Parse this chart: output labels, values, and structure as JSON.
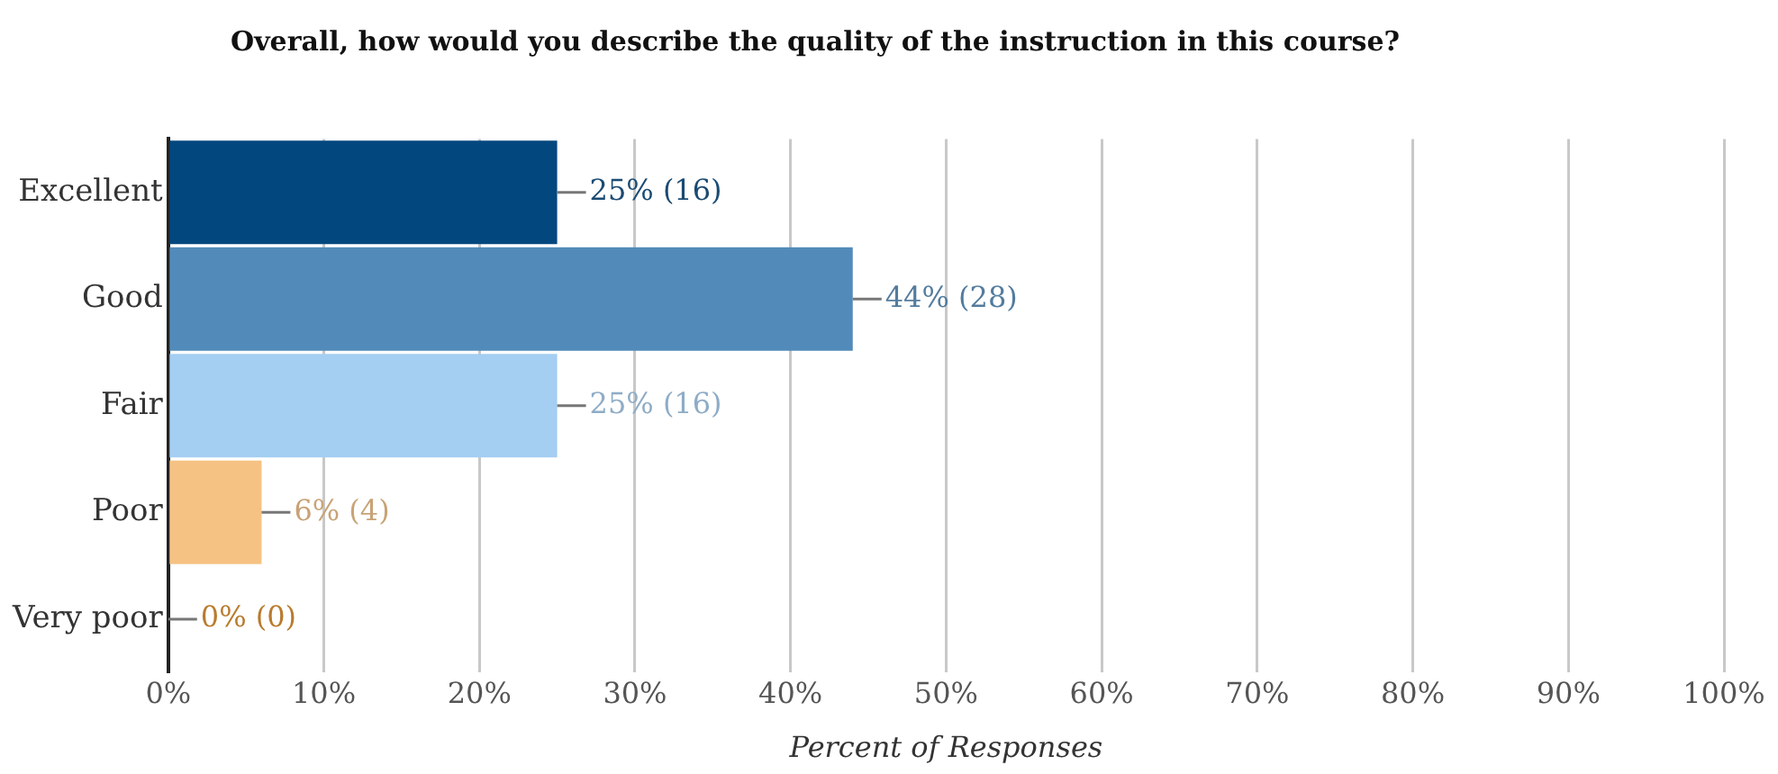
{
  "chart_data": {
    "type": "bar",
    "orientation": "horizontal",
    "title": "Overall, how would you describe the quality of the instruction in this course?",
    "xlabel": "Percent of Responses",
    "categories": [
      "Excellent",
      "Good",
      "Fair",
      "Poor",
      "Very poor"
    ],
    "values": [
      25,
      44,
      25,
      6,
      0
    ],
    "colors": [
      "#03477f",
      "#528bba",
      "#a4cef2",
      "#f5c283",
      "#e08a1e"
    ],
    "value_labels": [
      "25% (16)",
      "44% (28)",
      "25% (16)",
      "6% (4)",
      "0% (0)"
    ],
    "xlim": [
      0,
      100
    ],
    "xticks": [
      {
        "value": 0,
        "label": "0%"
      },
      {
        "value": 10,
        "label": "10%"
      },
      {
        "value": 20,
        "label": "20%"
      },
      {
        "value": 30,
        "label": "30%"
      },
      {
        "value": 40,
        "label": "40%"
      },
      {
        "value": 50,
        "label": "50%"
      },
      {
        "value": 60,
        "label": "60%"
      },
      {
        "value": 70,
        "label": "70%"
      },
      {
        "value": 80,
        "label": "80%"
      },
      {
        "value": 90,
        "label": "90%"
      },
      {
        "value": 100,
        "label": "100%"
      }
    ],
    "grid": "x",
    "legend": false
  }
}
